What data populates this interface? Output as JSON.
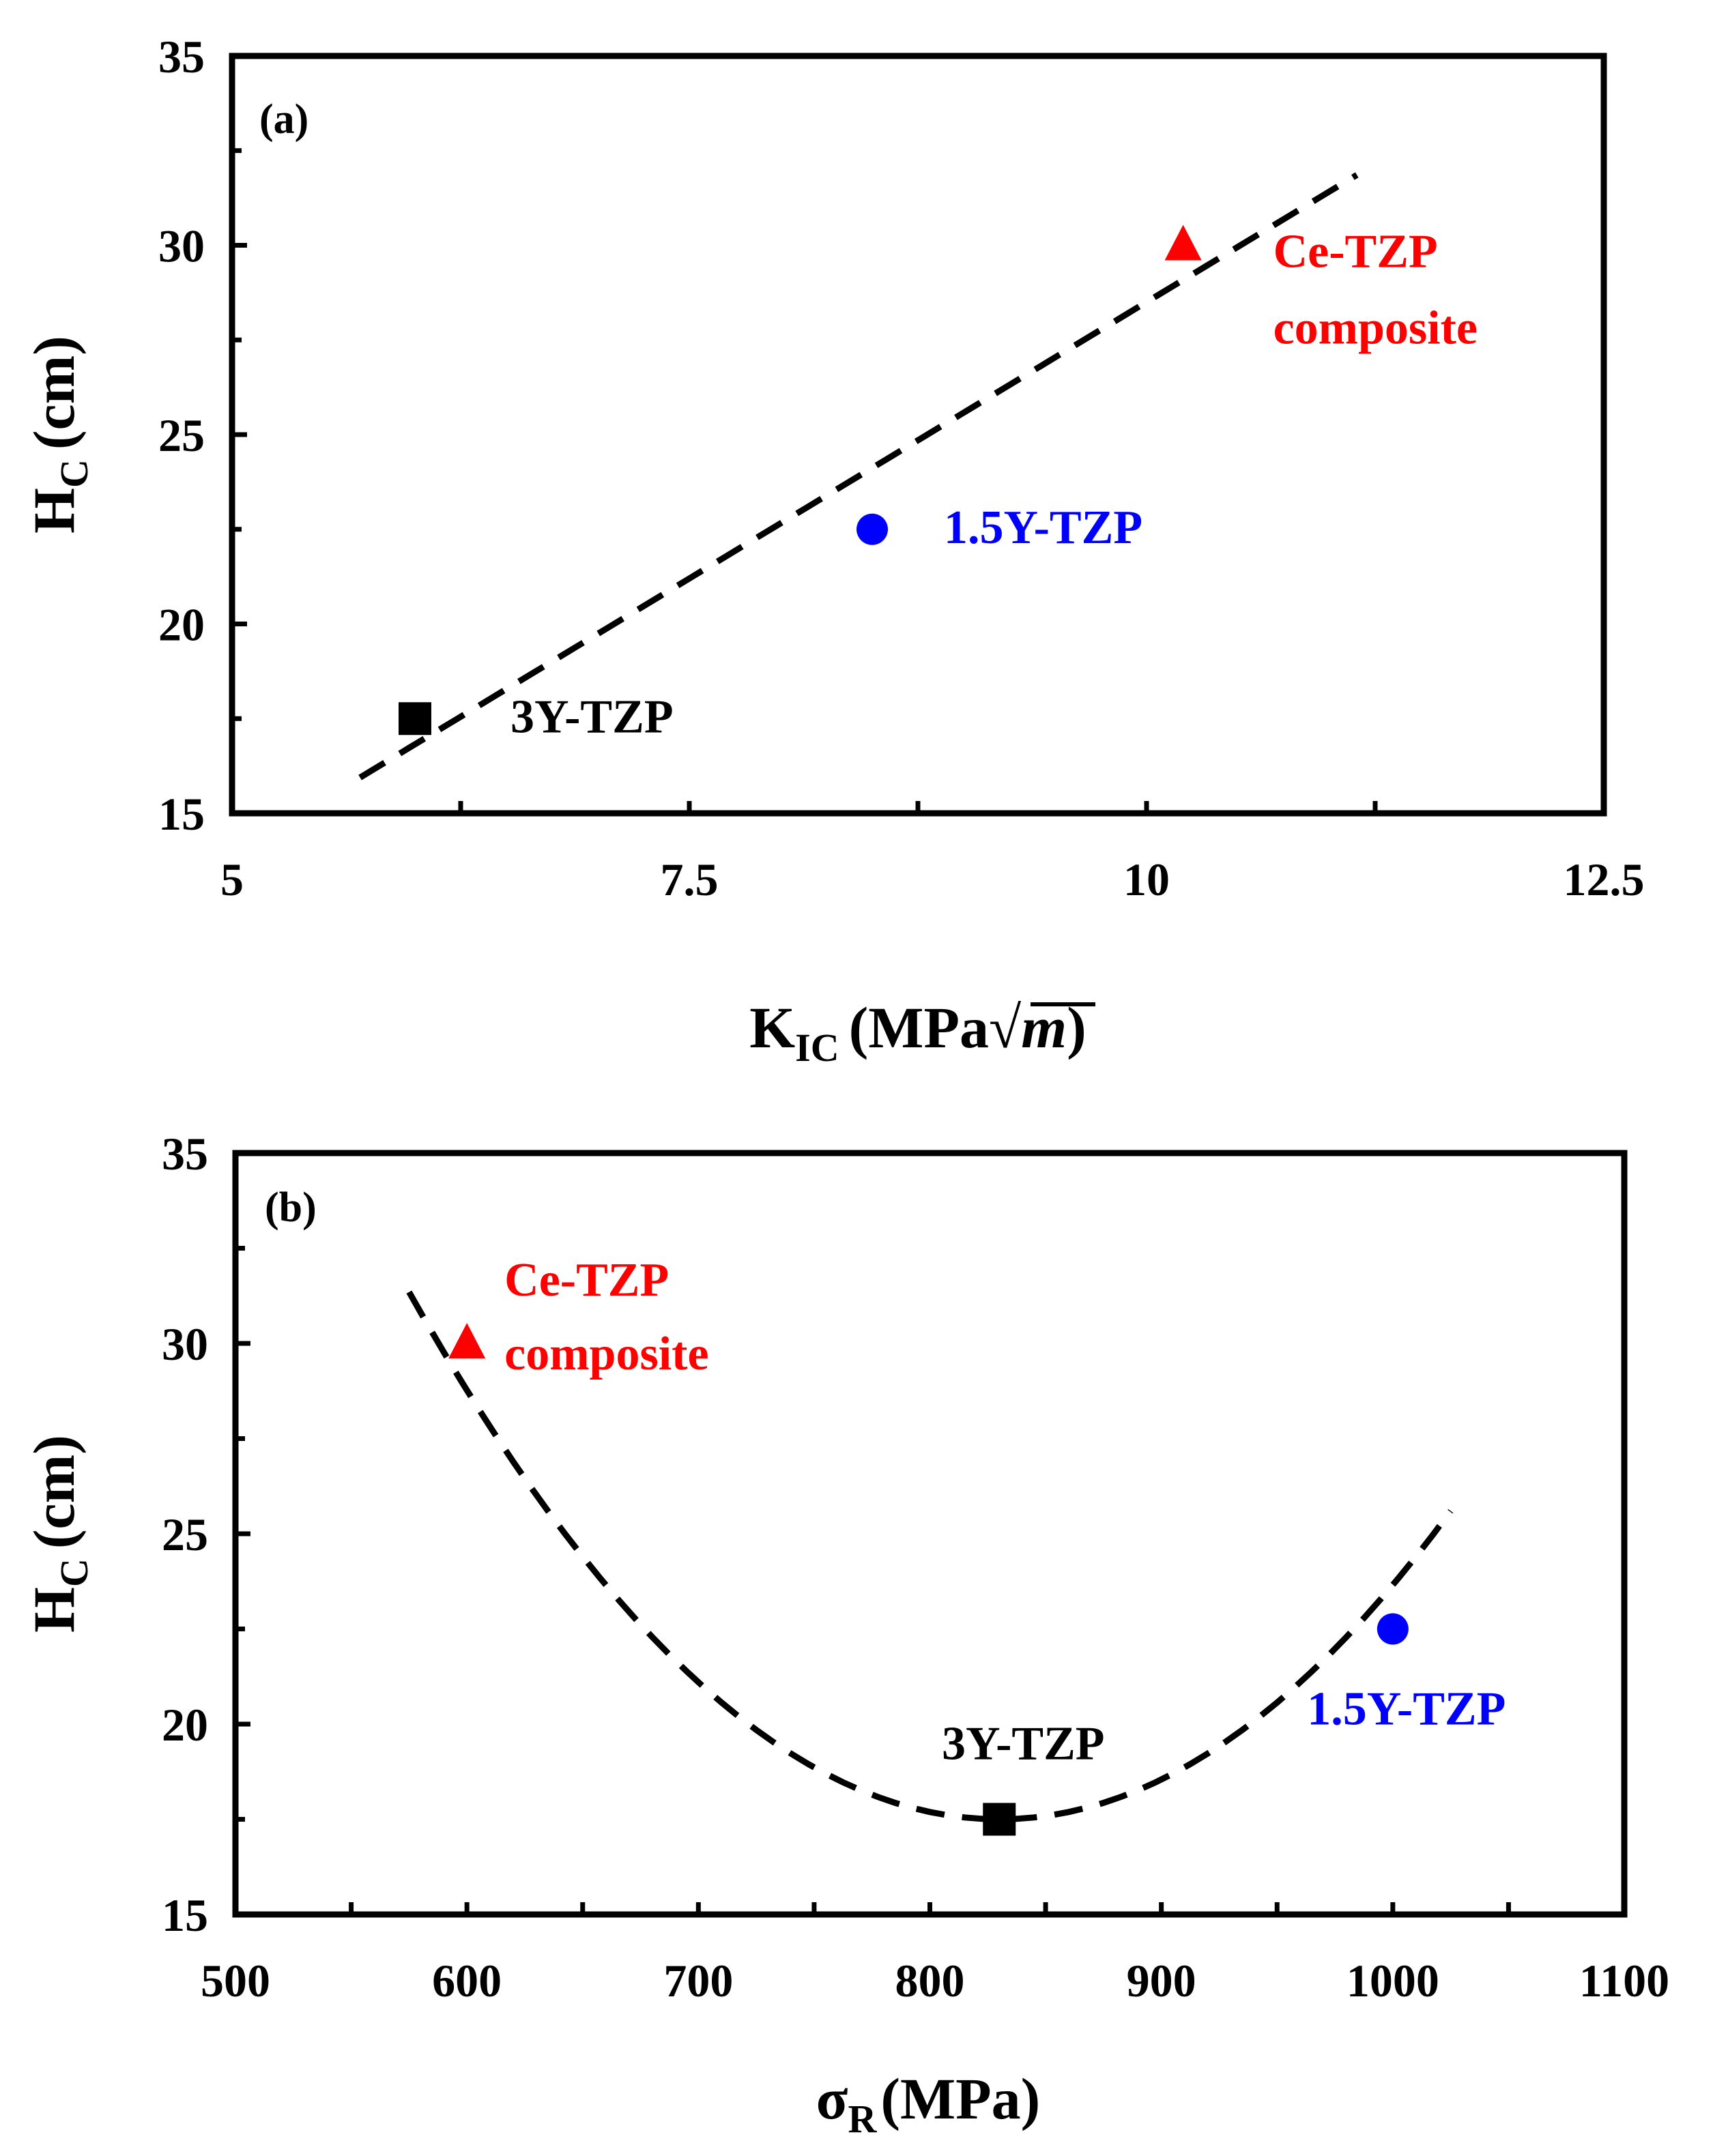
{
  "chart_data": [
    {
      "panel": "(a)",
      "type": "scatter",
      "xlabel_main": "K",
      "xlabel_sub": "IC",
      "xlabel_tail": "(MPa√",
      "xlabel_var": "m",
      "xlabel_close": ")",
      "ylabel_main": "H",
      "ylabel_sub": "C",
      "ylabel_tail": "(cm)",
      "xlim": [
        5,
        12.5
      ],
      "ylim": [
        15,
        35
      ],
      "xticks": [
        5,
        7.5,
        10,
        12.5
      ],
      "xtick_labels": [
        "5",
        "7.5",
        "10",
        "12.5"
      ],
      "yticks": [
        15,
        20,
        25,
        30,
        35
      ],
      "ytick_labels": [
        "15",
        "20",
        "25",
        "30",
        "35"
      ],
      "points": [
        {
          "name": "3Y-TZP",
          "x": 6.0,
          "y": 17.5,
          "marker": "square",
          "color": "#000000",
          "label_lines": [
            "3Y-TZP"
          ]
        },
        {
          "name": "1.5Y-TZP",
          "x": 8.5,
          "y": 22.5,
          "marker": "circle",
          "color": "#0000FF",
          "label_lines": [
            "1.5Y-TZP"
          ]
        },
        {
          "name": "Ce-TZP composite",
          "x": 10.2,
          "y": 30.0,
          "marker": "triangle",
          "color": "#FF0000",
          "label_lines": [
            "Ce-TZP",
            "composite"
          ]
        }
      ],
      "trend": {
        "kind": "linear",
        "x_start": 5.7,
        "x_end": 11.15,
        "slope": 2.92,
        "intercept": -0.7
      }
    },
    {
      "panel": "(b)",
      "type": "scatter",
      "xlabel_main": "σ",
      "xlabel_sub": "R",
      "xlabel_tail": "(MPa)",
      "ylabel_main": "H",
      "ylabel_sub": "C",
      "ylabel_tail": "(cm)",
      "xlim": [
        500,
        1100
      ],
      "ylim": [
        15,
        35
      ],
      "xticks": [
        500,
        600,
        700,
        800,
        900,
        1000,
        1100
      ],
      "xtick_labels": [
        "500",
        "600",
        "700",
        "800",
        "900",
        "1000",
        "1100"
      ],
      "yticks": [
        15,
        20,
        25,
        30,
        35
      ],
      "ytick_labels": [
        "15",
        "20",
        "25",
        "30",
        "35"
      ],
      "points": [
        {
          "name": "Ce-TZP composite",
          "x": 600,
          "y": 30.0,
          "marker": "triangle",
          "color": "#FF0000",
          "label_lines": [
            "Ce-TZP",
            "composite"
          ]
        },
        {
          "name": "3Y-TZP",
          "x": 830,
          "y": 17.5,
          "marker": "square",
          "color": "#000000",
          "label_lines": [
            "3Y-TZP"
          ]
        },
        {
          "name": "1.5Y-TZP",
          "x": 1000,
          "y": 22.5,
          "marker": "circle",
          "color": "#0000FF",
          "label_lines": [
            "1.5Y-TZP"
          ]
        }
      ],
      "trend": {
        "kind": "quadratic",
        "x_start": 575,
        "x_end": 1025,
        "vertex_x": 830,
        "vertex_y": 17.5,
        "a": 0.000213
      }
    }
  ]
}
